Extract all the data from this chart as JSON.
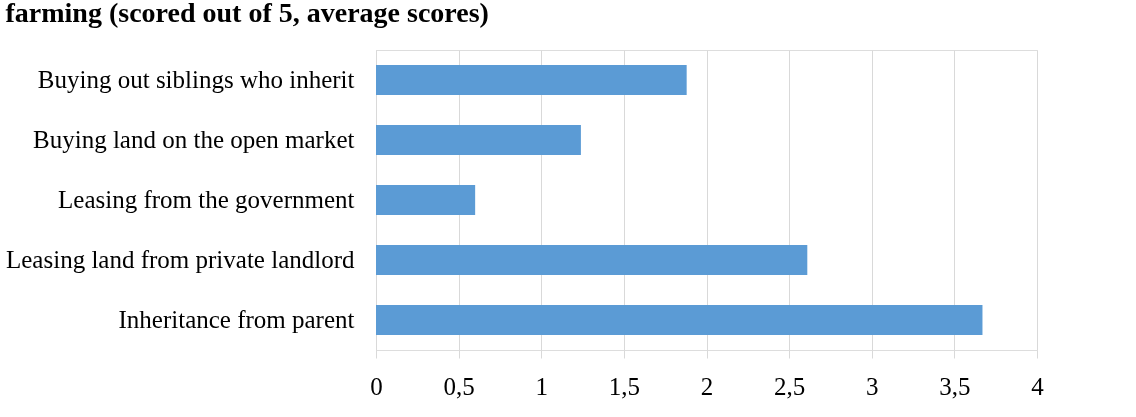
{
  "chart_data": {
    "type": "bar",
    "orientation": "horizontal",
    "title": "farming (scored out of 5, average scores)",
    "categories": [
      "Buying out siblings who inherit",
      "Buying land on the open market",
      "Leasing from the government",
      "Leasing land from private landlord",
      "Inheritance from parent"
    ],
    "values": [
      1.88,
      1.24,
      0.6,
      2.61,
      3.67
    ],
    "color": "#5b9bd5",
    "xlim": [
      0,
      4
    ],
    "xticks": [
      0,
      {
        "value": 0.5,
        "label": "0,5"
      },
      1,
      {
        "value": 1.5,
        "label": "1,5"
      },
      2,
      {
        "value": 2.5,
        "label": "2,5"
      },
      3,
      {
        "value": 3.5,
        "label": "3,5"
      },
      4
    ],
    "grid": "x"
  }
}
